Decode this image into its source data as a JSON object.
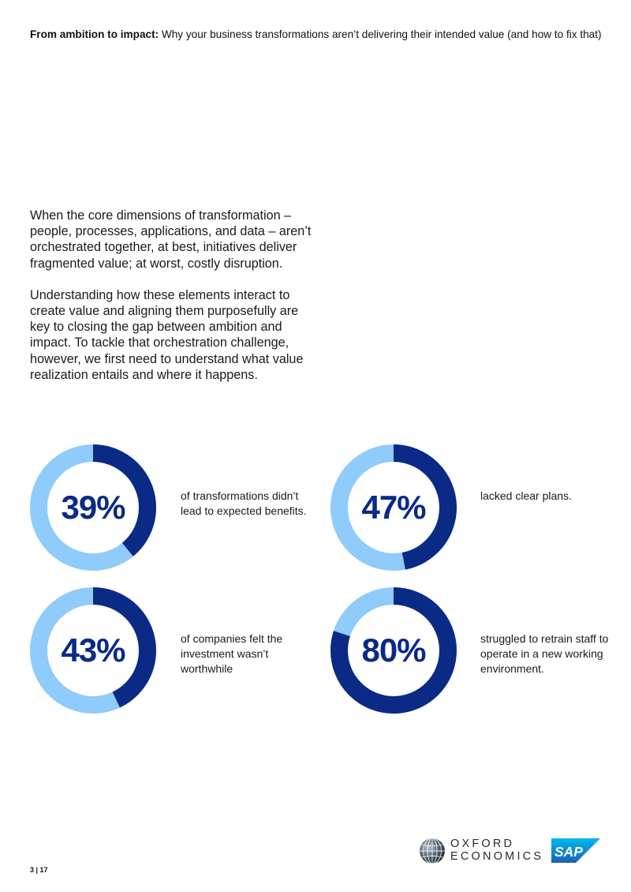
{
  "header": {
    "bold": "From ambition to impact:",
    "rest": " Why your business transformations aren’t delivering their intended value (and how to fix that)"
  },
  "body": {
    "paragraphs": [
      "When the core dimensions of transformation – people, processes, applications, and data – aren’t orchestrated together, at best, initiatives deliver fragmented value; at worst, costly disruption.",
      "Understanding how these elements interact to create value and aligning them purposefully are key to closing the gap between ambition and impact. To tackle that orchestration challenge, however, we first need to understand what value realization entails and where it happens."
    ]
  },
  "chart_data": [
    {
      "type": "pie",
      "value": 39,
      "label": "39%",
      "description": "of transformations didn’t lead to expected benefits."
    },
    {
      "type": "pie",
      "value": 47,
      "label": "47%",
      "description": "lacked clear plans."
    },
    {
      "type": "pie",
      "value": 43,
      "label": "43%",
      "description": "of companies felt the investment wasn’t worthwhile"
    },
    {
      "type": "pie",
      "value": 80,
      "label": "80%",
      "description": "struggled to retrain staff to operate in a new working environment."
    }
  ],
  "colors": {
    "dark_blue": "#0a2a86",
    "light_blue": "#8fcbfb",
    "text": "#1a1a1a"
  },
  "footer": {
    "page": "3 | 17",
    "oxford_line1": "OXFORD",
    "oxford_line2": "ECONOMICS",
    "sap": "SAP"
  }
}
